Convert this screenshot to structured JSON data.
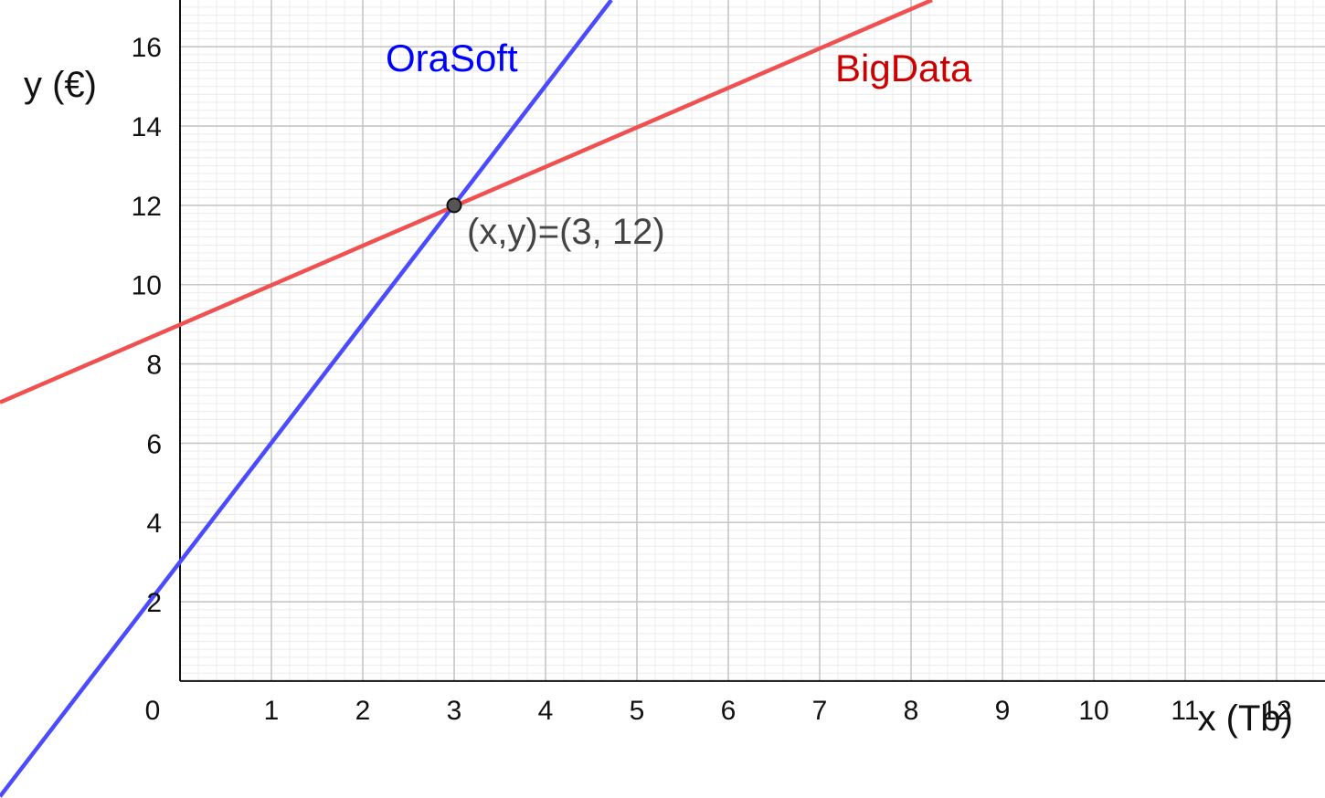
{
  "chart_data": {
    "type": "line",
    "title": "",
    "xlabel": "x (Tb)",
    "ylabel": "y (€)",
    "xlim": [
      -1.97,
      12.53
    ],
    "ylim": [
      -2.95,
      17.18
    ],
    "x_ticks": [
      0,
      1,
      2,
      3,
      4,
      5,
      6,
      7,
      8,
      9,
      10,
      11,
      12
    ],
    "y_ticks": [
      2,
      4,
      6,
      8,
      10,
      12,
      14,
      16
    ],
    "origin_label": "0",
    "grid": true,
    "grid_minor_step": 0.2,
    "series": [
      {
        "name": "OraSoft",
        "color": "#4a4aff",
        "label_color": "#0000ff",
        "x": [
          -1.97,
          4.72
        ],
        "y": [
          -2.91,
          17.18
        ]
      },
      {
        "name": "BigData",
        "color": "#f05050",
        "label_color": "#cc0000",
        "x": [
          -1.97,
          8.23
        ],
        "y": [
          7.03,
          17.18
        ]
      }
    ],
    "annotations": [
      {
        "text": "(x,y)=(3, 12)",
        "x": 3,
        "y": 12
      }
    ]
  }
}
